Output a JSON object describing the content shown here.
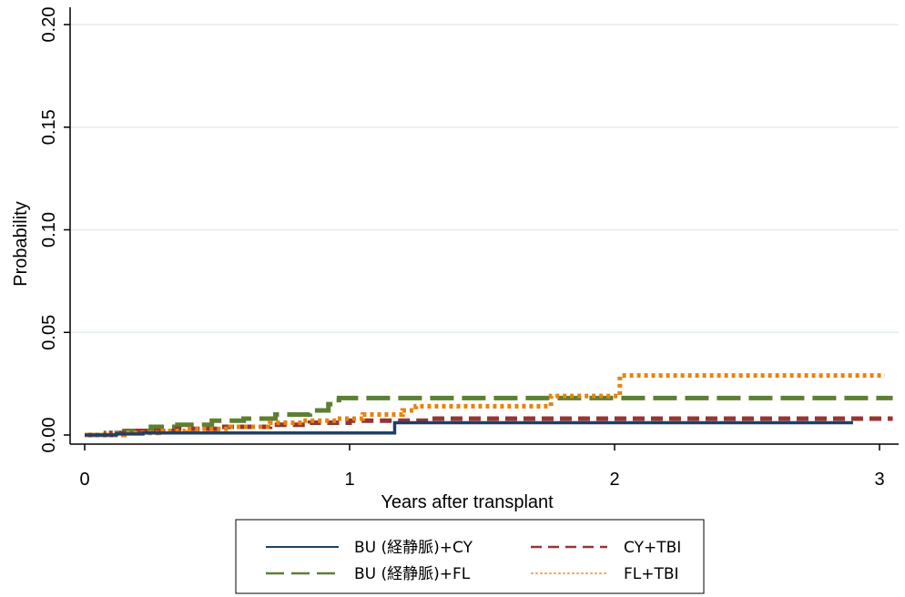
{
  "chart_data": {
    "type": "line",
    "title": "",
    "xlabel": "Years after transplant",
    "ylabel": "Probability",
    "xlim": [
      0,
      3
    ],
    "ylim": [
      0,
      0.2
    ],
    "x_ticks": [
      "0",
      "1",
      "2",
      "3"
    ],
    "y_ticks": [
      "0.00",
      "0.05",
      "0.10",
      "0.15",
      "0.20"
    ],
    "grid": "horizontal",
    "legend_position": "bottom",
    "series": [
      {
        "name": "BU (経静脈)+CY",
        "color": "#1f3f66",
        "style": "solid",
        "x": [
          0.0,
          0.12,
          0.22,
          0.35,
          0.5,
          1.16,
          1.17,
          2.9
        ],
        "y": [
          0.0,
          0.0005,
          0.001,
          0.001,
          0.001,
          0.001,
          0.006,
          0.006
        ]
      },
      {
        "name": "CY+TBI",
        "color": "#943634",
        "style": "dashed",
        "x": [
          0.0,
          0.1,
          0.2,
          0.35,
          0.5,
          0.7,
          0.85,
          1.0,
          1.3,
          3.05
        ],
        "y": [
          0.0,
          0.001,
          0.002,
          0.003,
          0.004,
          0.005,
          0.006,
          0.007,
          0.008,
          0.008
        ]
      },
      {
        "name": "BU (経静脈)+FL",
        "color": "#5c7f32",
        "style": "longdash",
        "x": [
          0.0,
          0.08,
          0.15,
          0.25,
          0.35,
          0.48,
          0.6,
          0.72,
          0.85,
          0.92,
          0.94,
          0.96,
          1.0,
          3.05
        ],
        "y": [
          0.0,
          0.001,
          0.002,
          0.004,
          0.005,
          0.007,
          0.008,
          0.01,
          0.012,
          0.015,
          0.017,
          0.018,
          0.018,
          0.018
        ]
      },
      {
        "name": "FL+TBI",
        "color": "#e8820c",
        "style": "dotted",
        "x": [
          0.0,
          0.15,
          0.28,
          0.38,
          0.55,
          0.7,
          0.82,
          0.95,
          1.05,
          1.2,
          1.25,
          1.72,
          1.76,
          2.0,
          2.02,
          3.02
        ],
        "y": [
          0.0,
          0.001,
          0.002,
          0.003,
          0.004,
          0.006,
          0.007,
          0.008,
          0.01,
          0.012,
          0.014,
          0.014,
          0.019,
          0.019,
          0.029,
          0.029
        ]
      }
    ]
  }
}
